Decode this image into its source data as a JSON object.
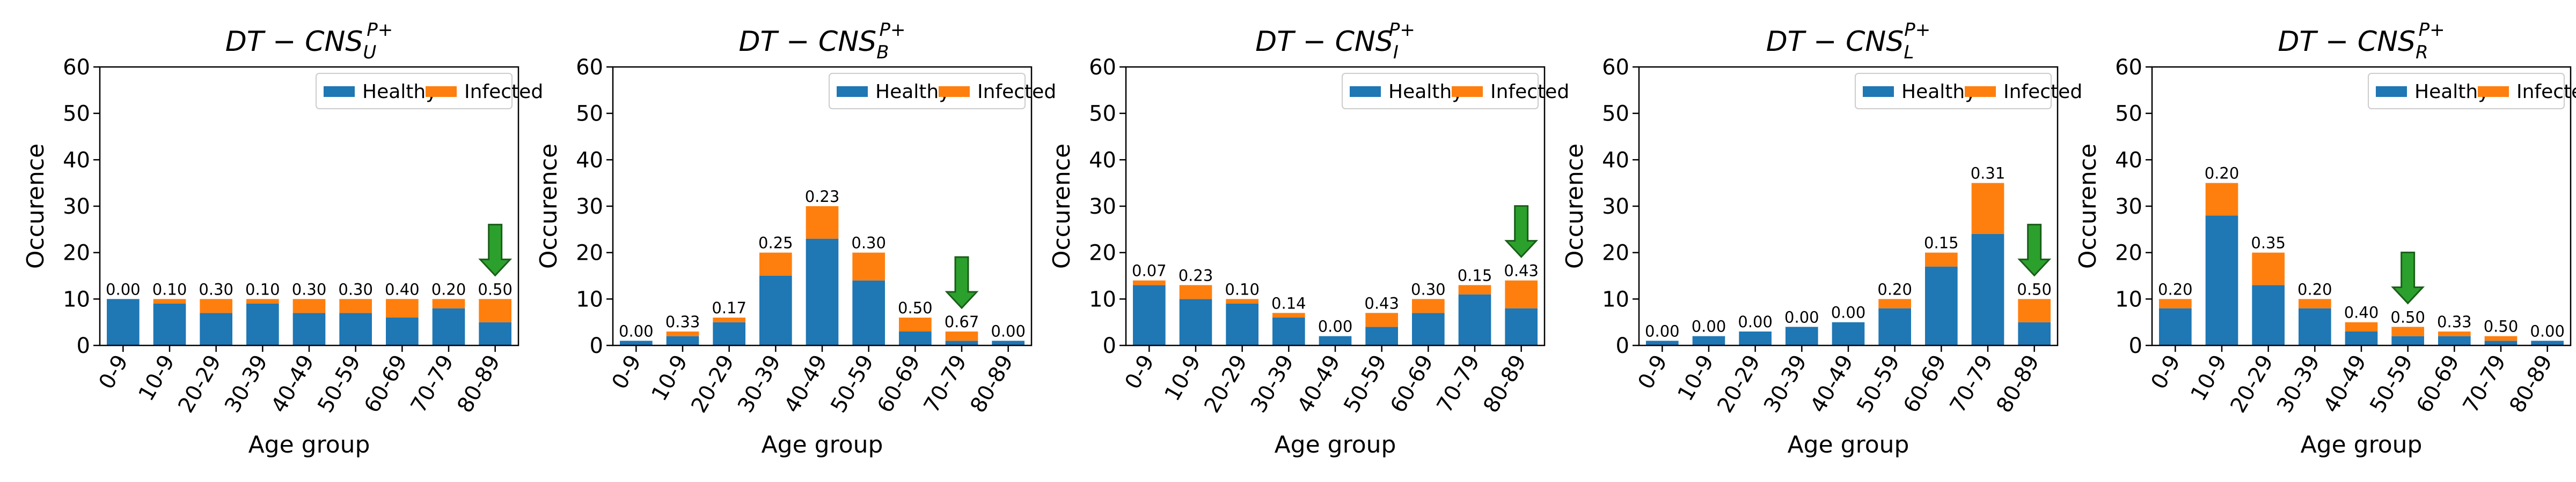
{
  "chart_data": [
    {
      "type": "bar",
      "stacked": true,
      "title_main": "DT − CNS",
      "title_sub": "U",
      "title_sup": "P+",
      "xlabel": "Age group",
      "ylabel": "Occurence",
      "ylim": [
        0,
        60
      ],
      "yticks": [
        "0",
        "10",
        "20",
        "30",
        "40",
        "50",
        "60"
      ],
      "categories": [
        "0-9",
        "10-9",
        "20-29",
        "30-39",
        "40-49",
        "50-59",
        "60-69",
        "70-79",
        "80-89"
      ],
      "series": [
        {
          "name": "Healthy",
          "color": "#1f77b4",
          "values": [
            10,
            9,
            7,
            9,
            7,
            7,
            6,
            8,
            5
          ]
        },
        {
          "name": "Infected",
          "color": "#ff7f0e",
          "values": [
            0,
            1,
            3,
            1,
            3,
            3,
            4,
            2,
            5
          ]
        }
      ],
      "data_labels": [
        "0.00",
        "0.10",
        "0.30",
        "0.10",
        "0.30",
        "0.30",
        "0.40",
        "0.20",
        "0.50"
      ],
      "arrow_category": "80-89",
      "legend": {
        "position": "top-right",
        "entries": [
          "Healthy",
          "Infected"
        ]
      }
    },
    {
      "type": "bar",
      "stacked": true,
      "title_main": "DT − CNS",
      "title_sub": "B",
      "title_sup": "P+",
      "xlabel": "Age group",
      "ylabel": "Occurence",
      "ylim": [
        0,
        60
      ],
      "yticks": [
        "0",
        "10",
        "20",
        "30",
        "40",
        "50",
        "60"
      ],
      "categories": [
        "0-9",
        "10-9",
        "20-29",
        "30-39",
        "40-49",
        "50-59",
        "60-69",
        "70-79",
        "80-89"
      ],
      "series": [
        {
          "name": "Healthy",
          "color": "#1f77b4",
          "values": [
            1,
            2,
            5,
            15,
            23,
            14,
            3,
            1,
            1
          ]
        },
        {
          "name": "Infected",
          "color": "#ff7f0e",
          "values": [
            0,
            1,
            1,
            5,
            7,
            6,
            3,
            2,
            0
          ]
        }
      ],
      "data_labels": [
        "0.00",
        "0.33",
        "0.17",
        "0.25",
        "0.23",
        "0.30",
        "0.50",
        "0.67",
        "0.00"
      ],
      "arrow_category": "70-79",
      "legend": {
        "position": "top-right",
        "entries": [
          "Healthy",
          "Infected"
        ]
      }
    },
    {
      "type": "bar",
      "stacked": true,
      "title_main": "DT − CNS",
      "title_sub": "I",
      "title_sup": "P+",
      "xlabel": "Age group",
      "ylabel": "Occurence",
      "ylim": [
        0,
        60
      ],
      "yticks": [
        "0",
        "10",
        "20",
        "30",
        "40",
        "50",
        "60"
      ],
      "categories": [
        "0-9",
        "10-9",
        "20-29",
        "30-39",
        "40-49",
        "50-59",
        "60-69",
        "70-79",
        "80-89"
      ],
      "series": [
        {
          "name": "Healthy",
          "color": "#1f77b4",
          "values": [
            13,
            10,
            9,
            6,
            2,
            4,
            7,
            11,
            8
          ]
        },
        {
          "name": "Infected",
          "color": "#ff7f0e",
          "values": [
            1,
            3,
            1,
            1,
            0,
            3,
            3,
            2,
            6
          ]
        }
      ],
      "data_labels": [
        "0.07",
        "0.23",
        "0.10",
        "0.14",
        "0.00",
        "0.43",
        "0.30",
        "0.15",
        "0.43"
      ],
      "arrow_category": "80-89",
      "legend": {
        "position": "top-right",
        "entries": [
          "Healthy",
          "Infected"
        ]
      }
    },
    {
      "type": "bar",
      "stacked": true,
      "title_main": "DT − CNS",
      "title_sub": "L",
      "title_sup": "P+",
      "xlabel": "Age group",
      "ylabel": "Occurence",
      "ylim": [
        0,
        60
      ],
      "yticks": [
        "0",
        "10",
        "20",
        "30",
        "40",
        "50",
        "60"
      ],
      "categories": [
        "0-9",
        "10-9",
        "20-29",
        "30-39",
        "40-49",
        "50-59",
        "60-69",
        "70-79",
        "80-89"
      ],
      "series": [
        {
          "name": "Healthy",
          "color": "#1f77b4",
          "values": [
            1,
            2,
            3,
            4,
            5,
            8,
            17,
            24,
            5
          ]
        },
        {
          "name": "Infected",
          "color": "#ff7f0e",
          "values": [
            0,
            0,
            0,
            0,
            0,
            2,
            3,
            11,
            5
          ]
        }
      ],
      "data_labels": [
        "0.00",
        "0.00",
        "0.00",
        "0.00",
        "0.00",
        "0.20",
        "0.15",
        "0.31",
        "0.50"
      ],
      "arrow_category": "80-89",
      "legend": {
        "position": "top-right",
        "entries": [
          "Healthy",
          "Infected"
        ]
      }
    },
    {
      "type": "bar",
      "stacked": true,
      "title_main": "DT − CNS",
      "title_sub": "R",
      "title_sup": "P+",
      "xlabel": "Age group",
      "ylabel": "Occurence",
      "ylim": [
        0,
        60
      ],
      "yticks": [
        "0",
        "10",
        "20",
        "30",
        "40",
        "50",
        "60"
      ],
      "categories": [
        "0-9",
        "10-9",
        "20-29",
        "30-39",
        "40-49",
        "50-59",
        "60-69",
        "70-79",
        "80-89"
      ],
      "series": [
        {
          "name": "Healthy",
          "color": "#1f77b4",
          "values": [
            8,
            28,
            13,
            8,
            3,
            2,
            2,
            1,
            1
          ]
        },
        {
          "name": "Infected",
          "color": "#ff7f0e",
          "values": [
            2,
            7,
            7,
            2,
            2,
            2,
            1,
            1,
            0
          ]
        }
      ],
      "data_labels": [
        "0.20",
        "0.20",
        "0.35",
        "0.20",
        "0.40",
        "0.50",
        "0.33",
        "0.50",
        "0.00"
      ],
      "arrow_category": "50-59",
      "legend": {
        "position": "top-right",
        "entries": [
          "Healthy",
          "Infected"
        ]
      }
    }
  ],
  "colors": {
    "healthy": "#1f77b4",
    "infected": "#ff7f0e",
    "arrow_fill": "#2ca02c",
    "arrow_stroke": "#1a5e1a"
  }
}
